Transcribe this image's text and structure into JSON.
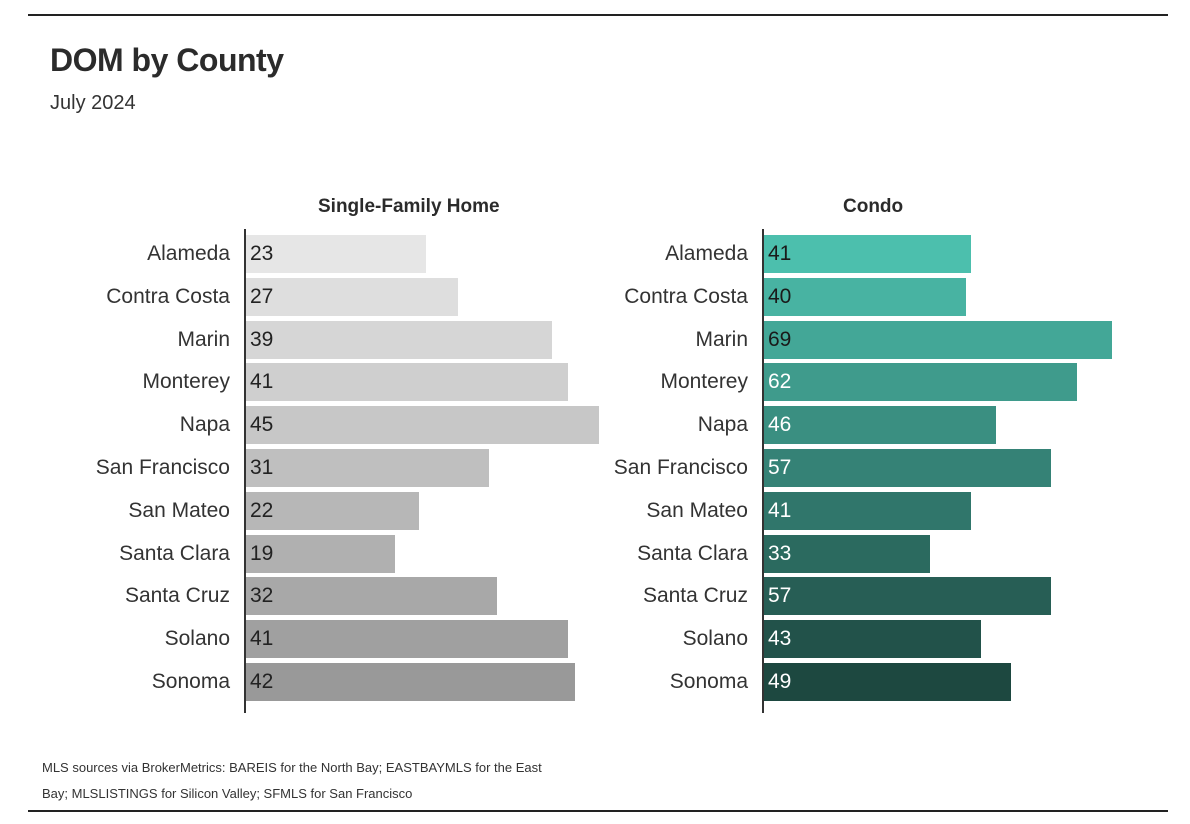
{
  "title": "DOM by County",
  "subtitle": "July 2024",
  "source": "MLS sources via BrokerMetrics: BAREIS for the North Bay; EASTBAYMLS for the East Bay; MLSLISTINGS for Silicon Valley; SFMLS for San Francisco",
  "chart_data": [
    {
      "type": "bar",
      "orientation": "horizontal",
      "title": "Single-Family Home",
      "categories": [
        "Alameda",
        "Contra Costa",
        "Marin",
        "Monterey",
        "Napa",
        "San Francisco",
        "San Mateo",
        "Santa Clara",
        "Santa Cruz",
        "Solano",
        "Sonoma"
      ],
      "values": [
        23,
        27,
        39,
        41,
        45,
        31,
        22,
        19,
        32,
        41,
        42
      ],
      "colors": [
        "#e6e6e6",
        "#dedede",
        "#d6d6d6",
        "#cfcfcf",
        "#c7c7c7",
        "#bfbfbf",
        "#b7b7b7",
        "#b0b0b0",
        "#a8a8a8",
        "#a0a0a0",
        "#999999"
      ],
      "label_color": "#222222",
      "xlim": [
        0,
        45
      ],
      "grid": false
    },
    {
      "type": "bar",
      "orientation": "horizontal",
      "title": "Condo",
      "categories": [
        "Alameda",
        "Contra Costa",
        "Marin",
        "Monterey",
        "Napa",
        "San Francisco",
        "San Mateo",
        "Santa Clara",
        "Santa Cruz",
        "Solano",
        "Sonoma"
      ],
      "values": [
        41,
        40,
        69,
        62,
        46,
        57,
        41,
        33,
        57,
        43,
        49
      ],
      "colors": [
        "#4cbfad",
        "#48b3a2",
        "#43a797",
        "#3f9b8c",
        "#3a8f81",
        "#358276",
        "#30766b",
        "#2b6a5f",
        "#275e55",
        "#22524a",
        "#1d4840"
      ],
      "label_colors": [
        "#1a1a1a",
        "#1a1a1a",
        "#1a1a1a",
        "#ffffff",
        "#ffffff",
        "#ffffff",
        "#ffffff",
        "#ffffff",
        "#ffffff",
        "#ffffff",
        "#ffffff"
      ],
      "xlim": [
        0,
        69
      ],
      "grid": false
    }
  ]
}
